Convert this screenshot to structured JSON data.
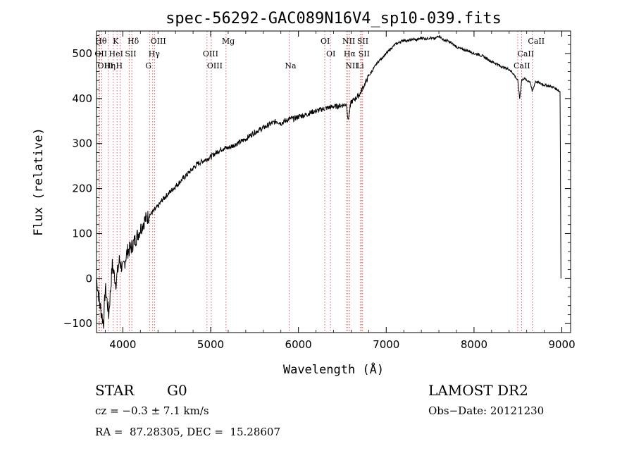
{
  "chart_data": {
    "type": "line",
    "title": "spec-56292-GAC089N16V4_sp10-039.fits",
    "xlabel": "Wavelength (Å)",
    "ylabel": "Flux (relative)",
    "xlim": [
      3700,
      9100
    ],
    "ylim": [
      -120,
      550
    ],
    "xticks": [
      4000,
      5000,
      6000,
      7000,
      8000,
      9000
    ],
    "yticks": [
      -100,
      0,
      100,
      200,
      300,
      400,
      500
    ],
    "grid": false,
    "series": [
      {
        "x": [
          3700,
          3740,
          3780,
          3800,
          3840,
          3880,
          3920,
          3960,
          4000,
          4050,
          4100,
          4150,
          4200,
          4250,
          4300,
          4350,
          4400,
          4450,
          4500,
          4550,
          4600,
          4650,
          4700,
          4750,
          4800,
          4850,
          4900,
          4950,
          5000,
          5050,
          5100,
          5150,
          5200,
          5250,
          5300,
          5350,
          5400,
          5450,
          5500,
          5550,
          5600,
          5650,
          5700,
          5750,
          5800,
          5850,
          5900,
          5950,
          6000,
          6050,
          6100,
          6150,
          6200,
          6250,
          6300,
          6350,
          6400,
          6450,
          6500,
          6550,
          6563,
          6600,
          6650,
          6700,
          6750,
          6800,
          6850,
          6900,
          6950,
          7000,
          7050,
          7100,
          7150,
          7200,
          7250,
          7300,
          7350,
          7400,
          7450,
          7500,
          7550,
          7600,
          7650,
          7700,
          7750,
          7800,
          7850,
          7900,
          7950,
          8000,
          8050,
          8100,
          8150,
          8200,
          8250,
          8300,
          8350,
          8400,
          8450,
          8498,
          8520,
          8542,
          8570,
          8600,
          8640,
          8662,
          8700,
          8750,
          8800,
          8850,
          8900,
          8950,
          8980,
          8990
        ],
        "y": [
          0,
          -60,
          -100,
          -20,
          -80,
          30,
          -10,
          40,
          20,
          60,
          70,
          90,
          110,
          130,
          140,
          150,
          160,
          175,
          185,
          195,
          205,
          215,
          225,
          235,
          245,
          255,
          260,
          265,
          270,
          278,
          285,
          290,
          290,
          295,
          300,
          305,
          310,
          318,
          325,
          330,
          335,
          340,
          345,
          350,
          345,
          350,
          355,
          355,
          360,
          362,
          365,
          370,
          372,
          375,
          378,
          380,
          382,
          383,
          385,
          388,
          350,
          392,
          400,
          410,
          430,
          450,
          465,
          480,
          490,
          500,
          510,
          520,
          525,
          530,
          528,
          532,
          530,
          535,
          533,
          535,
          532,
          540,
          530,
          528,
          522,
          515,
          510,
          508,
          505,
          500,
          498,
          494,
          488,
          482,
          478,
          472,
          468,
          465,
          455,
          440,
          400,
          440,
          445,
          440,
          438,
          415,
          438,
          434,
          430,
          428,
          425,
          420,
          415,
          0
        ]
      }
    ],
    "annotations": [
      {
        "x": 3734,
        "label": "Hθ"
      },
      {
        "x": 3727,
        "label": "OII"
      },
      {
        "x": 3760,
        "label": "OIII"
      },
      {
        "x": 3835,
        "label": "Hη"
      },
      {
        "x": 3934,
        "label": "K"
      },
      {
        "x": 3889,
        "label": "HeI"
      },
      {
        "x": 3969,
        "label": "H"
      },
      {
        "x": 4072,
        "label": "SII"
      },
      {
        "x": 4102,
        "label": "Hδ"
      },
      {
        "x": 4340,
        "label": "Hγ"
      },
      {
        "x": 4363,
        "label": "OIII"
      },
      {
        "x": 4304,
        "label": "G"
      },
      {
        "x": 4959,
        "label": "OIII"
      },
      {
        "x": 5007,
        "label": "OIII"
      },
      {
        "x": 5175,
        "label": "Mg"
      },
      {
        "x": 5894,
        "label": "Na"
      },
      {
        "x": 6300,
        "label": "OI"
      },
      {
        "x": 6364,
        "label": "OI"
      },
      {
        "x": 6548,
        "label": "NII"
      },
      {
        "x": 6563,
        "label": "Hα"
      },
      {
        "x": 6583,
        "label": "NII"
      },
      {
        "x": 6708,
        "label": "Li"
      },
      {
        "x": 6716,
        "label": "SII"
      },
      {
        "x": 6731,
        "label": "SII"
      },
      {
        "x": 8498,
        "label": "CaII"
      },
      {
        "x": 8542,
        "label": "CaII"
      },
      {
        "x": 8662,
        "label": "CaII"
      }
    ]
  },
  "footer": {
    "object_class": "STAR",
    "subclass": "G0",
    "redshift": "cz = −0.3 ± 7.1 km/s",
    "coords": "RA =  87.28305, DEC =  15.28607",
    "survey": "LAMOST DR2",
    "obs_date": "Obs−Date: 20121230"
  }
}
